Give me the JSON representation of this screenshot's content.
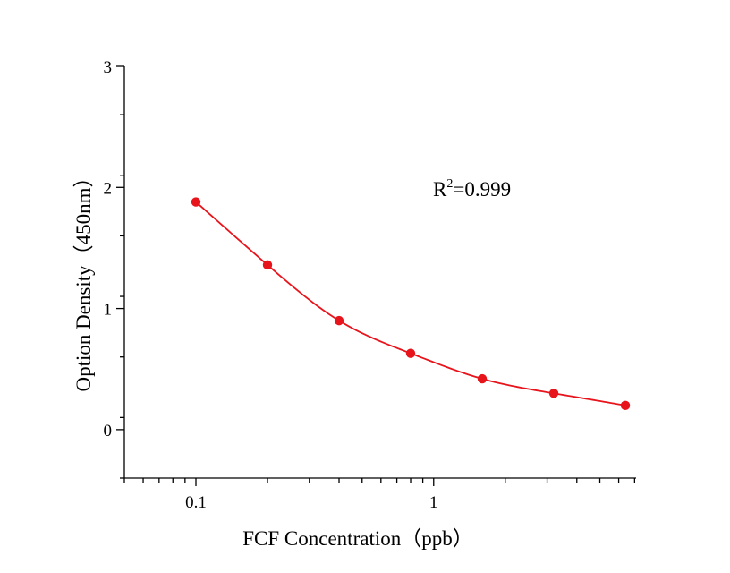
{
  "chart_data": {
    "type": "scatter",
    "title": "",
    "xlabel": "FCF Concentration（ppb）",
    "ylabel": "Option Density（450nm）",
    "xscale": "log",
    "xlim": [
      0.05,
      7.1
    ],
    "ylim": [
      -0.4,
      3.0
    ],
    "x_major_ticks": [
      0.1,
      1
    ],
    "x_tick_labels": [
      "0.1",
      "1"
    ],
    "y_ticks": [
      0,
      1,
      2,
      3
    ],
    "y_tick_labels": [
      "0",
      "1",
      "2",
      "3"
    ],
    "grid": false,
    "series": [
      {
        "color": "#e8141c",
        "marker": "circle",
        "fit_line": true,
        "x": [
          0.1,
          0.2,
          0.4,
          0.8,
          1.6,
          3.2,
          6.4
        ],
        "y": [
          1.88,
          1.36,
          0.9,
          0.63,
          0.42,
          0.3,
          0.2
        ]
      }
    ],
    "annotations": [
      {
        "base": "R",
        "sup": "2",
        "rest": "=0.999"
      }
    ]
  }
}
